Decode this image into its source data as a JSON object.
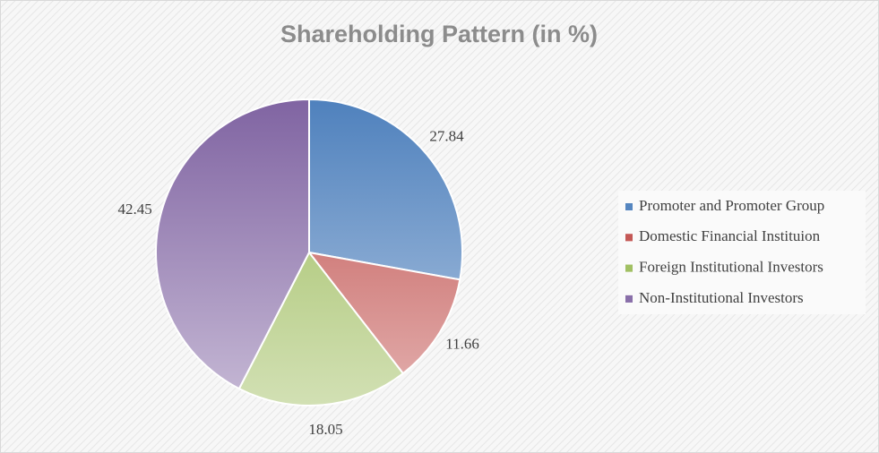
{
  "chart_data": {
    "type": "pie",
    "title": "Shareholding Pattern (in %)",
    "categories": [
      "Promoter and Promoter Group",
      "Domestic Financial Instituion",
      "Foreign Institutional Investors",
      "Non-Institutional Investors"
    ],
    "values": [
      27.84,
      11.66,
      18.05,
      42.45
    ],
    "colors": [
      "#4f81bd",
      "#c0504d",
      "#9bbb59",
      "#8064a2"
    ],
    "legend": "right"
  }
}
